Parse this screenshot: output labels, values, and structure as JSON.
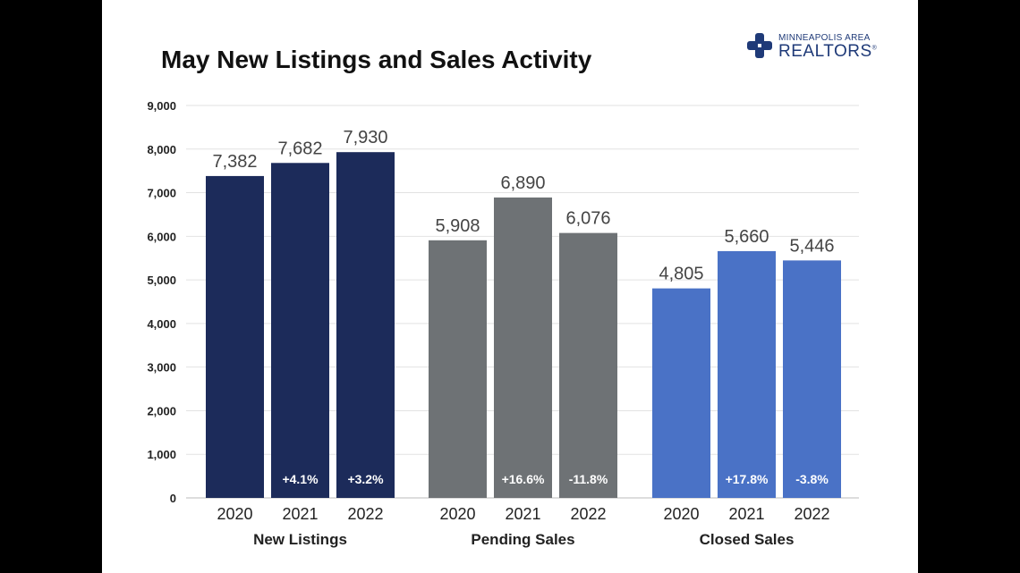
{
  "title": "May New Listings and Sales Activity",
  "logo": {
    "line1": "MINNEAPOLIS AREA",
    "line2": "REALTORS",
    "mark": "®"
  },
  "colors": {
    "new_listings": "#1c2b5a",
    "pending_sales": "#6e7275",
    "closed_sales": "#4a72c6",
    "gridline": "#e2e2e2",
    "text": "#222222",
    "value_label": "#444444"
  },
  "chart_data": {
    "type": "bar",
    "ylim": [
      0,
      9000
    ],
    "yticks": [
      "0",
      "1,000",
      "2,000",
      "3,000",
      "4,000",
      "5,000",
      "6,000",
      "7,000",
      "8,000",
      "9,000"
    ],
    "grid": true,
    "groups": [
      {
        "name": "New Listings",
        "color_key": "new_listings",
        "bars": [
          {
            "year": "2020",
            "value": 7382,
            "label": "7,382",
            "change": ""
          },
          {
            "year": "2021",
            "value": 7682,
            "label": "7,682",
            "change": "+4.1%"
          },
          {
            "year": "2022",
            "value": 7930,
            "label": "7,930",
            "change": "+3.2%"
          }
        ]
      },
      {
        "name": "Pending Sales",
        "color_key": "pending_sales",
        "bars": [
          {
            "year": "2020",
            "value": 5908,
            "label": "5,908",
            "change": ""
          },
          {
            "year": "2021",
            "value": 6890,
            "label": "6,890",
            "change": "+16.6%"
          },
          {
            "year": "2022",
            "value": 6076,
            "label": "6,076",
            "change": "-11.8%"
          }
        ]
      },
      {
        "name": "Closed Sales",
        "color_key": "closed_sales",
        "bars": [
          {
            "year": "2020",
            "value": 4805,
            "label": "4,805",
            "change": ""
          },
          {
            "year": "2021",
            "value": 5660,
            "label": "5,660",
            "change": "+17.8%"
          },
          {
            "year": "2022",
            "value": 5446,
            "label": "5,446",
            "change": "-3.8%"
          }
        ]
      }
    ]
  }
}
